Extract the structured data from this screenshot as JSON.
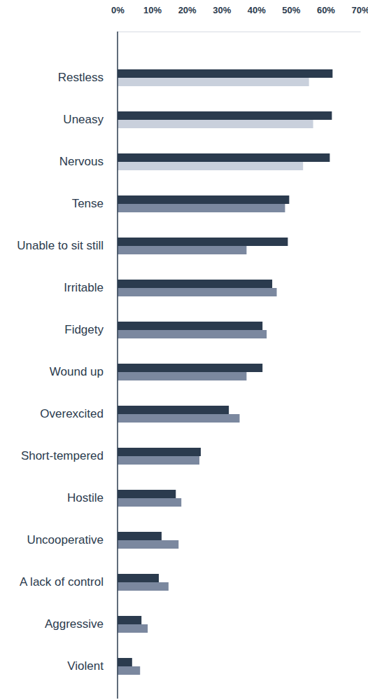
{
  "chart_data": {
    "type": "bar",
    "orientation": "horizontal",
    "categories": [
      "Restless",
      "Uneasy",
      "Nervous",
      "Tense",
      "Unable to sit still",
      "Irritable",
      "Fidgety",
      "Wound up",
      "Overexcited",
      "Short-tempered",
      "Hostile",
      "Uncooperative",
      "A lack of control",
      "Aggressive",
      "Violent"
    ],
    "series": [
      {
        "color": "#2b3b4e",
        "values": [
          62.0,
          61.8,
          61.2,
          49.5,
          49.1,
          44.6,
          41.8,
          41.8,
          32.1,
          24.0,
          16.8,
          12.7,
          11.9,
          6.9,
          4.2
        ]
      },
      {
        "colors": [
          "#c9d0dc",
          "#c9d0dc",
          "#c9d0dc",
          "#7b889f",
          "#7b889f",
          "#7b889f",
          "#7b889f",
          "#7b889f",
          "#7b889f",
          "#7b889f",
          "#7b889f",
          "#7b889f",
          "#7b889f",
          "#7b889f",
          "#7b889f"
        ],
        "values": [
          55.2,
          56.4,
          53.5,
          48.3,
          37.2,
          45.9,
          43.0,
          37.2,
          35.2,
          23.6,
          18.4,
          17.6,
          14.7,
          8.7,
          6.5
        ]
      }
    ],
    "xlim": [
      0,
      70
    ],
    "xticks": [
      {
        "value": 0,
        "label": "0%"
      },
      {
        "value": 10,
        "label": "10%"
      },
      {
        "value": 20,
        "label": "20%"
      },
      {
        "value": 30,
        "label": "30%"
      },
      {
        "value": 40,
        "label": "40%"
      },
      {
        "value": 50,
        "label": "50%"
      },
      {
        "value": 60,
        "label": "60%"
      },
      {
        "value": 70,
        "label": "70%"
      }
    ],
    "grid": false
  }
}
